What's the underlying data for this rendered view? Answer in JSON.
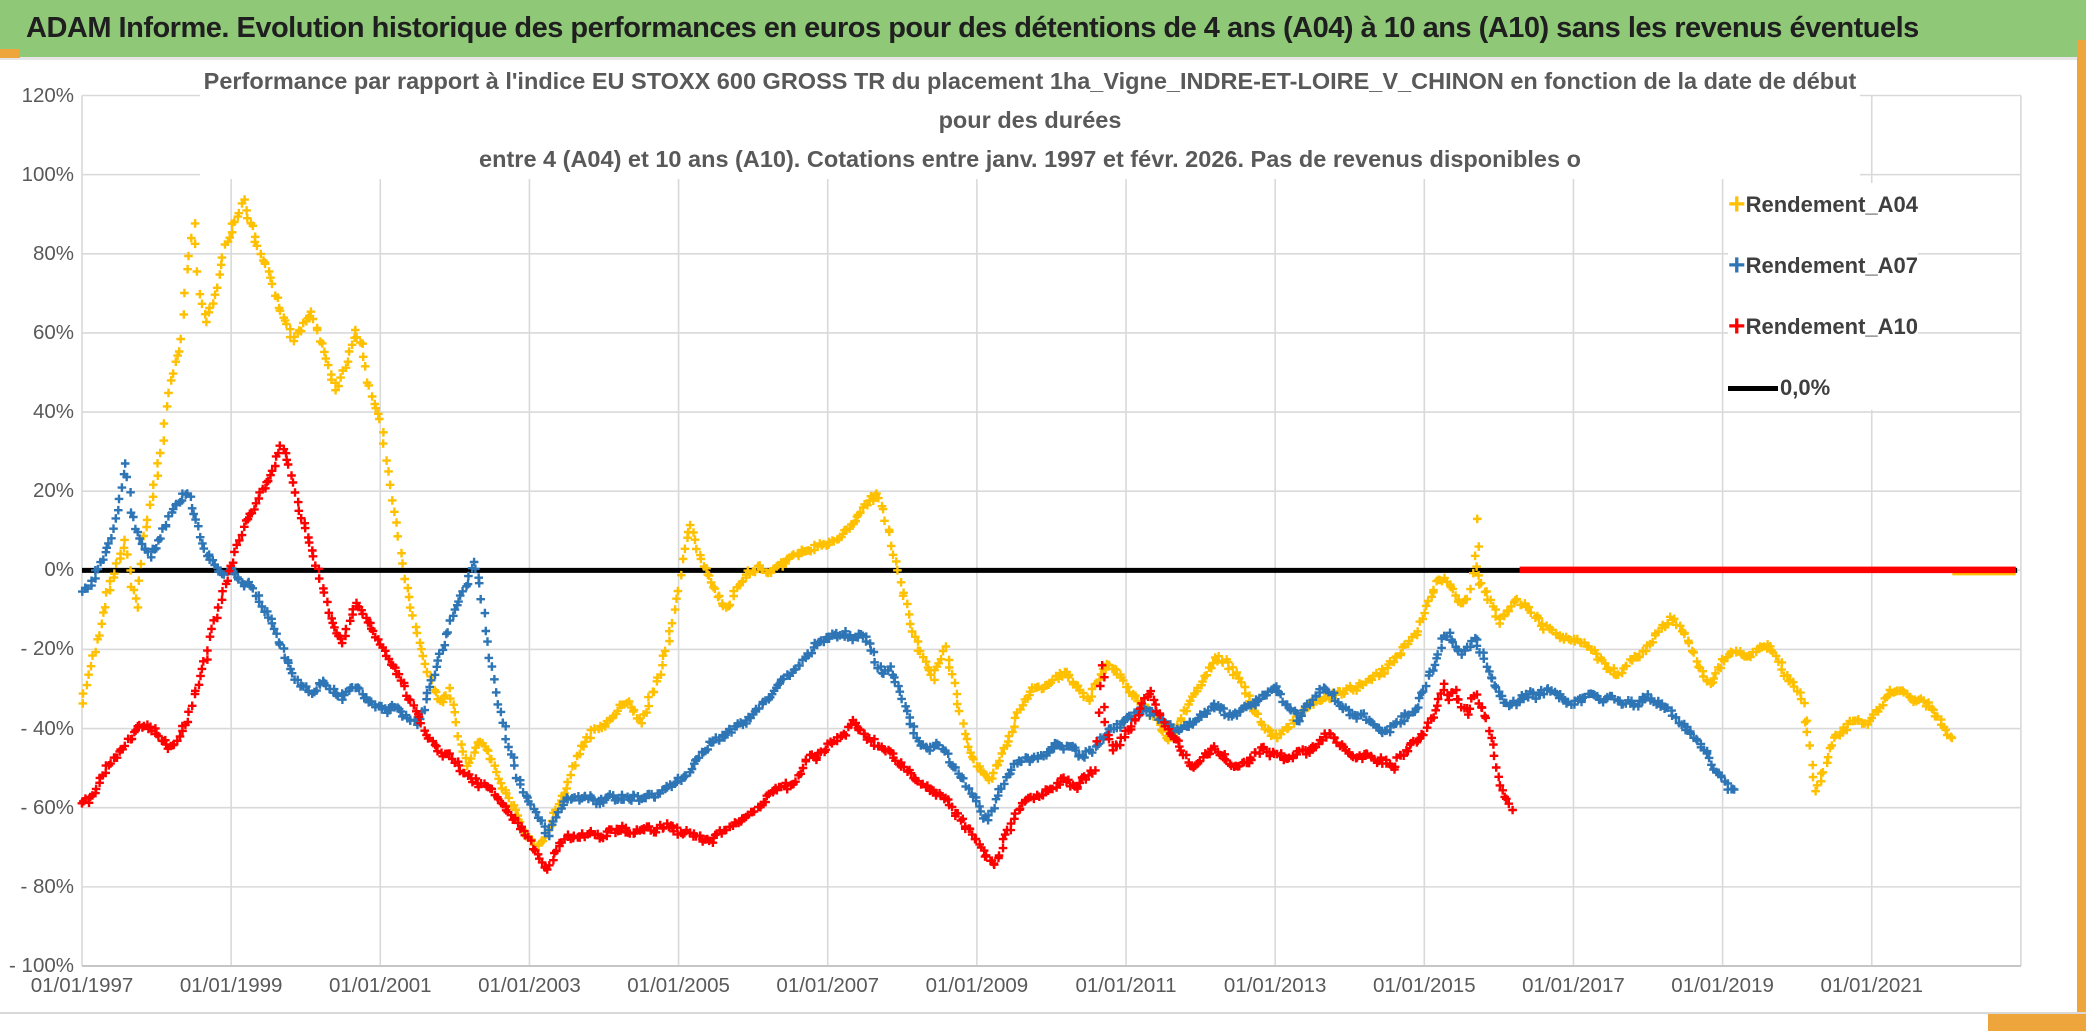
{
  "page": {
    "header_title": "ADAM Informe. Evolution historique des performances en euros pour des détentions de 4 ans (A04) à 10 ans (A10) sans les revenus éventuels",
    "colors": {
      "header_green": "#8FC978",
      "gold_accent": "#EDA53C",
      "grid_gray": "#D9D9D9",
      "axis_text_gray": "#595959",
      "title_text_gray": "#595959",
      "header_text": "#1F1F1F"
    }
  },
  "chart_data": {
    "type": "scatter",
    "title_lines": [
      "Performance par rapport à l'indice EU STOXX 600 GROSS TR  du placement 1ha_Vigne_INDRE-ET-LOIRE_V_CHINON en fonction de la date de début",
      "pour des durées",
      "entre 4 (A04) et 10 ans (A10). Cotations entre janv. 1997 et févr. 2026. Pas de revenus disponibles o"
    ],
    "x_axis": {
      "tick_labels": [
        "01/01/1997",
        "01/01/1999",
        "01/01/2001",
        "01/01/2003",
        "01/01/2005",
        "01/01/2007",
        "01/01/2009",
        "01/01/2011",
        "01/01/2013",
        "01/01/2015",
        "01/01/2017",
        "01/01/2019",
        "01/01/2021"
      ],
      "tick_years": [
        1997,
        1999,
        2001,
        2003,
        2005,
        2007,
        2009,
        2011,
        2013,
        2015,
        2017,
        2019,
        2021
      ],
      "gridline_years": [
        1997,
        1999,
        2001,
        2003,
        2005,
        2007,
        2009,
        2011,
        2013,
        2015,
        2017,
        2019,
        2021,
        2023
      ],
      "range_years": [
        1997,
        2023
      ]
    },
    "y_axis": {
      "tick_labels": [
        "120%",
        "100%",
        "80%",
        "60%",
        "40%",
        "20%",
        "0%",
        "- 20%",
        "- 40%",
        "- 60%",
        "- 80%",
        "- 100%"
      ],
      "tick_values": [
        120,
        100,
        80,
        60,
        40,
        20,
        0,
        -20,
        -40,
        -60,
        -80,
        -100
      ],
      "ylim": [
        -100,
        120
      ],
      "grid": true
    },
    "zero_line": {
      "label": "0,0%",
      "value": 0,
      "color": "#000000"
    },
    "legend": {
      "position": "top-right",
      "items": [
        {
          "label": "Rendement_A04",
          "marker": "plus",
          "color": "#FFC000"
        },
        {
          "label": "Rendement_A07",
          "marker": "plus",
          "color": "#2E75B6"
        },
        {
          "label": "Rendement_A10",
          "marker": "plus",
          "color": "#FF0000"
        },
        {
          "label": "0,0%",
          "marker": "line",
          "color": "#000000"
        }
      ]
    },
    "series": [
      {
        "name": "Rendement_A04",
        "color": "#FFC000",
        "marker": "plus",
        "start_year": 1997.0,
        "step_months": 1,
        "values_pct": [
          -33,
          -26,
          -20,
          -14,
          -6,
          -2,
          3,
          7,
          -4,
          -9,
          8,
          16,
          24,
          33,
          45,
          52,
          58,
          76,
          88,
          70,
          63,
          68,
          74,
          82,
          86,
          90,
          93,
          88,
          83,
          79,
          76,
          70,
          65,
          62,
          58,
          60,
          63,
          65,
          60,
          55,
          50,
          46,
          50,
          55,
          60,
          57,
          48,
          42,
          38,
          28,
          18,
          8,
          -2,
          -10,
          -16,
          -22,
          -27,
          -31,
          -34,
          -30,
          -36,
          -44,
          -49,
          -46,
          -43,
          -45,
          -48,
          -52,
          -56,
          -59,
          -62,
          -65,
          -68,
          -70,
          -69,
          -66,
          -62,
          -58,
          -55,
          -50,
          -46,
          -43,
          -41,
          -40,
          -40,
          -38,
          -36,
          -34,
          -33,
          -36,
          -38,
          -34,
          -30,
          -26,
          -20,
          -13,
          -5,
          6,
          12,
          5,
          1,
          -2,
          -5,
          -8,
          -9,
          -6,
          -3,
          -1,
          0,
          1,
          0,
          -1,
          1,
          2,
          3,
          4,
          5,
          5,
          6,
          7,
          7,
          8,
          9,
          10,
          12,
          14,
          16,
          18,
          19,
          15,
          9,
          2,
          -5,
          -11,
          -17,
          -21,
          -25,
          -27,
          -23,
          -20,
          -26,
          -34,
          -41,
          -46,
          -49,
          -51,
          -53,
          -50,
          -47,
          -43,
          -39,
          -35,
          -32,
          -30,
          -30,
          -29,
          -28,
          -27,
          -26,
          -27,
          -29,
          -31,
          -33,
          -29,
          -26,
          -24,
          -25,
          -27,
          -29,
          -31,
          -33,
          -34,
          -36,
          -38,
          -41,
          -43,
          -40,
          -37,
          -34,
          -31,
          -29,
          -26,
          -23,
          -22,
          -23,
          -25,
          -27,
          -30,
          -33,
          -36,
          -39,
          -41,
          -42,
          -41,
          -40,
          -38,
          -37,
          -35,
          -34,
          -33,
          -32,
          -32,
          -31,
          -31,
          -30,
          -30,
          -29,
          -28,
          -27,
          -26,
          -25,
          -23,
          -21,
          -19,
          -17,
          -15,
          -11,
          -7,
          -3,
          -2,
          -4,
          -6,
          -8,
          -8,
          3,
          -3,
          -6,
          -9,
          -13,
          -11,
          -9,
          -8,
          -8,
          -10,
          -12,
          -14,
          -15,
          -16,
          -17,
          -17,
          -17,
          -18,
          -19,
          -20,
          -22,
          -24,
          -25,
          -26,
          -25,
          -23,
          -22,
          -21,
          -19,
          -17,
          -15,
          -13,
          -12,
          -14,
          -16,
          -20,
          -24,
          -27,
          -29,
          -26,
          -23,
          -21,
          -21,
          -21,
          -22,
          -21,
          -20,
          -19,
          -20,
          -23,
          -26,
          -28,
          -30,
          -34,
          -45,
          -56,
          -52,
          -47,
          -43,
          -41,
          -40,
          -38,
          -38,
          -39,
          -37,
          -35,
          -33,
          -31,
          -30,
          -31,
          -32,
          -33,
          -33,
          -34,
          -36,
          -38,
          -41,
          -43
        ],
        "extra_points": [
          [
            2015.71,
            13
          ],
          [
            2015.73,
            6
          ],
          [
            2020.13,
            -38
          ]
        ],
        "zero_tail_years": [
          2022.08,
          2022.93
        ]
      },
      {
        "name": "Rendement_A07",
        "color": "#2E75B6",
        "marker": "plus",
        "start_year": 1997.0,
        "step_months": 1,
        "values_pct": [
          -5,
          -4,
          -2,
          2,
          5,
          10,
          18,
          27,
          15,
          9,
          6,
          4,
          6,
          10,
          13,
          16,
          18,
          20,
          14,
          9,
          4,
          2,
          0,
          -1,
          1,
          -2,
          -4,
          -3,
          -6,
          -9,
          -12,
          -15,
          -19,
          -23,
          -26,
          -29,
          -30,
          -31,
          -29,
          -28,
          -30,
          -31,
          -32,
          -30,
          -29,
          -31,
          -33,
          -34,
          -35,
          -36,
          -34,
          -35,
          -37,
          -38,
          -39,
          -35,
          -30,
          -25,
          -20,
          -15,
          -10,
          -7,
          -3,
          2,
          -4,
          -15,
          -25,
          -34,
          -40,
          -46,
          -52,
          -56,
          -58,
          -61,
          -64,
          -67,
          -63,
          -60,
          -58,
          -57,
          -58,
          -57,
          -58,
          -59,
          -58,
          -57,
          -58,
          -57,
          -58,
          -57,
          -58,
          -57,
          -57,
          -56,
          -55,
          -54,
          -53,
          -52,
          -50,
          -48,
          -46,
          -44,
          -43,
          -42,
          -41,
          -40,
          -39,
          -38,
          -36,
          -35,
          -33,
          -31,
          -29,
          -27,
          -26,
          -25,
          -23,
          -21,
          -19,
          -18,
          -17,
          -16,
          -17,
          -16,
          -17,
          -16,
          -17,
          -20,
          -24,
          -26,
          -25,
          -28,
          -33,
          -37,
          -41,
          -44,
          -45,
          -45,
          -44,
          -46,
          -49,
          -51,
          -53,
          -56,
          -59,
          -62,
          -63,
          -58,
          -55,
          -52,
          -49,
          -48,
          -47,
          -48,
          -47,
          -46,
          -45,
          -44,
          -45,
          -44,
          -46,
          -47,
          -46,
          -45,
          -43,
          -41,
          -40,
          -39,
          -38,
          -37,
          -36,
          -35,
          -36,
          -37,
          -38,
          -39,
          -41,
          -40,
          -39,
          -38,
          -37,
          -36,
          -34,
          -35,
          -36,
          -37,
          -36,
          -35,
          -34,
          -33,
          -32,
          -31,
          -30,
          -32,
          -34,
          -36,
          -38,
          -35,
          -33,
          -31,
          -30,
          -31,
          -33,
          -35,
          -36,
          -37,
          -36,
          -38,
          -39,
          -40,
          -41,
          -39,
          -38,
          -37,
          -36,
          -34,
          -30,
          -26,
          -22,
          -18,
          -16,
          -19,
          -21,
          -20,
          -17,
          -20,
          -24,
          -28,
          -31,
          -33,
          -34,
          -33,
          -32,
          -31,
          -32,
          -31,
          -30,
          -31,
          -32,
          -33,
          -34,
          -33,
          -32,
          -31,
          -32,
          -33,
          -32,
          -33,
          -34,
          -33,
          -34,
          -33,
          -32,
          -33,
          -34,
          -35,
          -36,
          -38,
          -40,
          -41,
          -43,
          -45,
          -48,
          -51,
          -53,
          -55,
          -55
        ],
        "extra_points": [],
        "zero_tail_years": null
      },
      {
        "name": "Rendement_A10",
        "color": "#FF0000",
        "marker": "plus",
        "start_year": 1997.0,
        "step_months": 1,
        "values_pct": [
          -59,
          -58,
          -56,
          -53,
          -50,
          -48,
          -46,
          -44,
          -42,
          -40,
          -39,
          -40,
          -41,
          -43,
          -45,
          -44,
          -41,
          -38,
          -32,
          -27,
          -22,
          -15,
          -10,
          -4,
          1,
          6,
          11,
          14,
          17,
          20,
          23,
          27,
          31,
          28,
          22,
          15,
          10,
          5,
          0,
          -6,
          -12,
          -16,
          -18,
          -13,
          -9,
          -10,
          -13,
          -16,
          -19,
          -22,
          -24,
          -27,
          -30,
          -33,
          -36,
          -40,
          -43,
          -45,
          -47,
          -46,
          -48,
          -50,
          -52,
          -53,
          -54,
          -55,
          -56,
          -58,
          -60,
          -62,
          -64,
          -66,
          -68,
          -71,
          -74,
          -76,
          -72,
          -69,
          -67,
          -68,
          -67,
          -67,
          -66,
          -67,
          -67,
          -66,
          -66,
          -65,
          -66,
          -66,
          -65,
          -65,
          -66,
          -65,
          -64,
          -65,
          -66,
          -66,
          -67,
          -67,
          -68,
          -69,
          -67,
          -66,
          -65,
          -64,
          -64,
          -62,
          -61,
          -60,
          -58,
          -56,
          -55,
          -54,
          -55,
          -53,
          -50,
          -46,
          -48,
          -46,
          -44,
          -43,
          -42,
          -41,
          -38,
          -40,
          -42,
          -43,
          -44,
          -45,
          -46,
          -48,
          -50,
          -51,
          -53,
          -54,
          -55,
          -56,
          -57,
          -58,
          -60,
          -62,
          -64,
          -66,
          -68,
          -71,
          -73,
          -75,
          -70,
          -66,
          -63,
          -60,
          -58,
          -57,
          -57,
          -56,
          -55,
          -54,
          -53,
          -54,
          -55,
          -53,
          -52,
          -50,
          -30,
          -42,
          -45,
          -44,
          -41,
          -39,
          -37,
          -33,
          -31,
          -35,
          -38,
          -41,
          -43,
          -45,
          -48,
          -50,
          -48,
          -46,
          -45,
          -46,
          -47,
          -49,
          -50,
          -49,
          -48,
          -46,
          -45,
          -46,
          -47,
          -47,
          -48,
          -47,
          -46,
          -46,
          -45,
          -44,
          -42,
          -41,
          -43,
          -45,
          -46,
          -47,
          -47,
          -47,
          -48,
          -48,
          -49,
          -50,
          -47,
          -46,
          -44,
          -43,
          -41,
          -38,
          -34,
          -29,
          -32,
          -31,
          -34,
          -36,
          -31,
          -34,
          -38,
          -44,
          -52,
          -57,
          -61
        ],
        "extra_points": [
          [
            2010.68,
            -24
          ],
          [
            2010.71,
            -27
          ]
        ],
        "zero_tail_years": [
          2016.28,
          2022.93
        ]
      }
    ]
  }
}
